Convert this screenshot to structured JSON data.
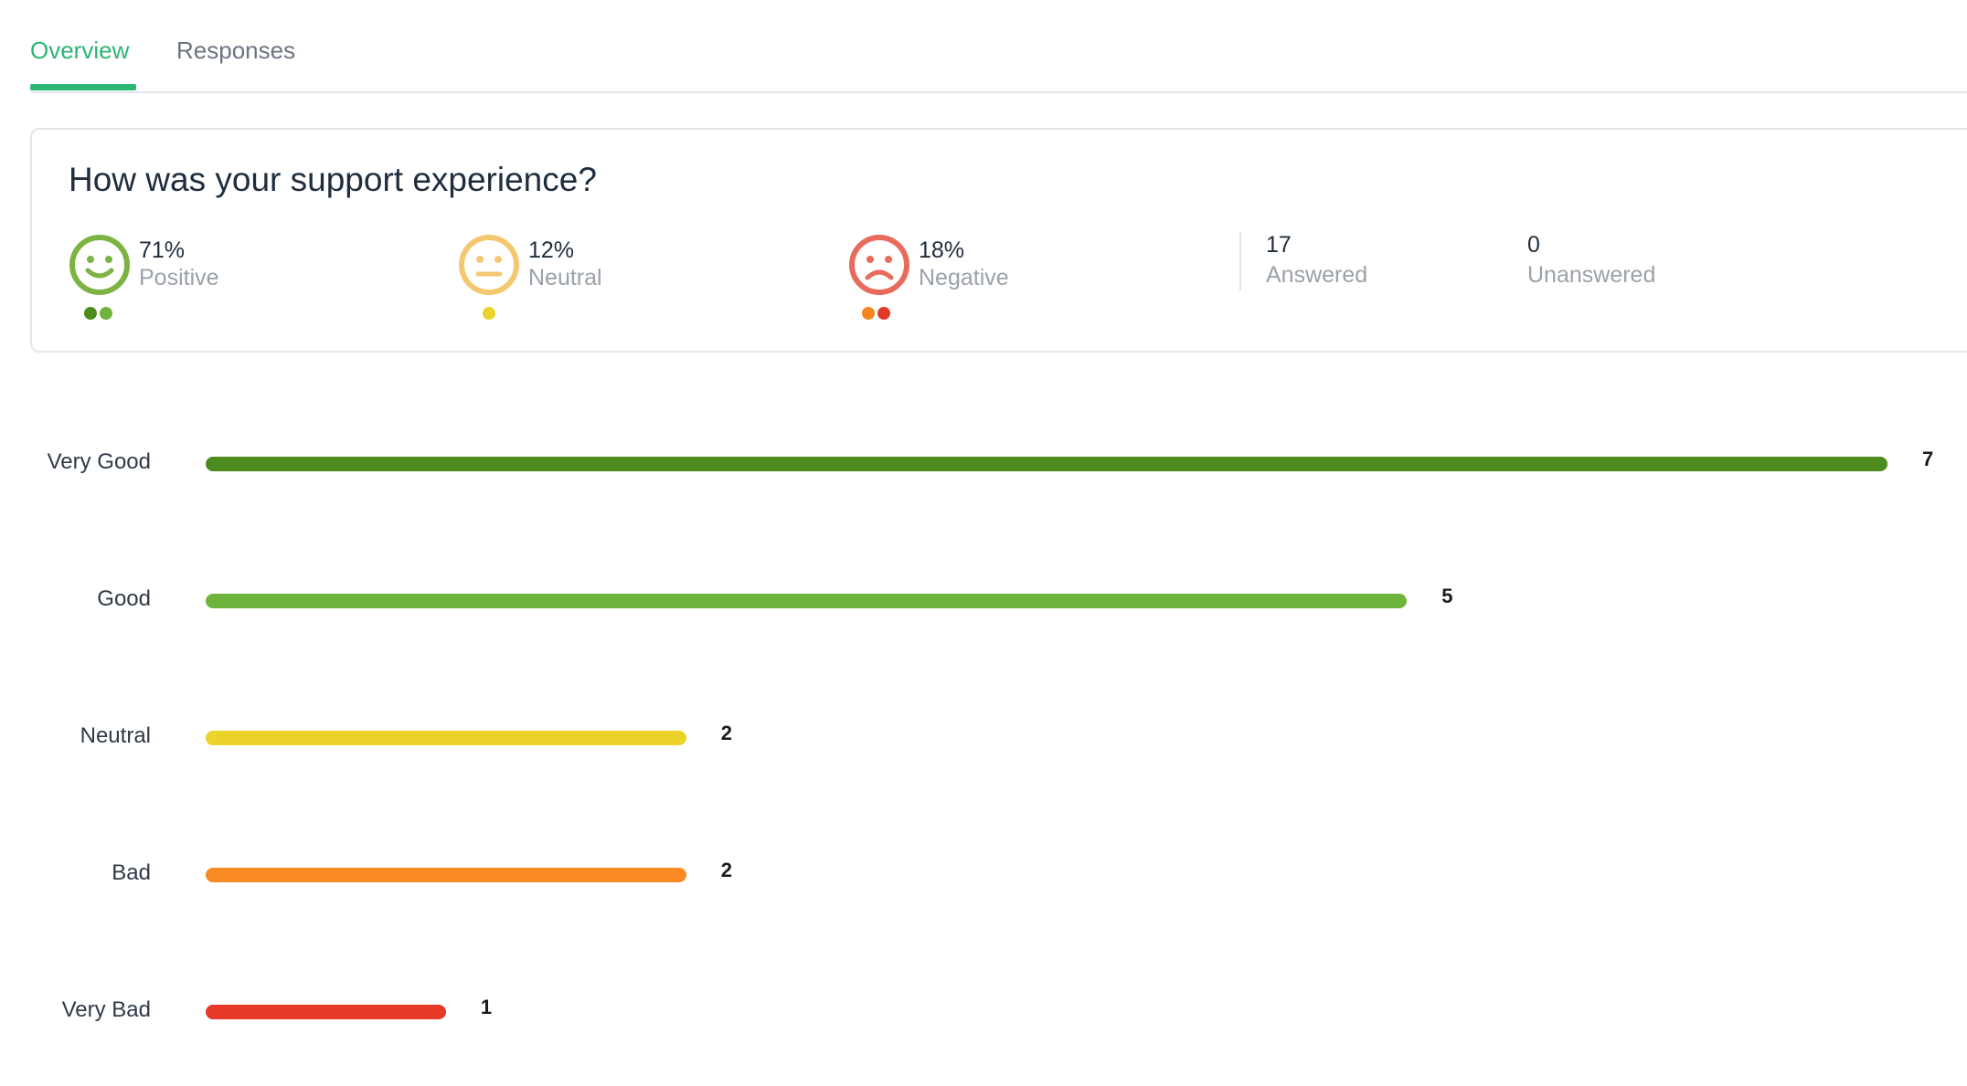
{
  "tabs": [
    {
      "label": "Overview",
      "active": true
    },
    {
      "label": "Responses",
      "active": false
    }
  ],
  "card": {
    "question": "How was your support experience?",
    "positive": {
      "percent": "71%",
      "label": "Positive",
      "icon": "smile-face-icon",
      "color": "#7cb342",
      "dots": [
        "#4e8b1e",
        "#6fb43c"
      ]
    },
    "neutral": {
      "percent": "12%",
      "label": "Neutral",
      "icon": "neutral-face-icon",
      "color": "#f4c871",
      "dots": [
        "#ecd32c"
      ]
    },
    "negative": {
      "percent": "18%",
      "label": "Negative",
      "icon": "frown-face-icon",
      "color": "#e86b5c",
      "dots": [
        "#f5861f",
        "#e33a28"
      ]
    },
    "answered": {
      "value": "17",
      "label": "Answered"
    },
    "unanswered": {
      "value": "0",
      "label": "Unanswered"
    }
  },
  "chart_data": {
    "type": "bar",
    "orientation": "horizontal",
    "categories": [
      "Very Good",
      "Good",
      "Neutral",
      "Bad",
      "Very Bad"
    ],
    "values": [
      7,
      5,
      2,
      2,
      1
    ],
    "colors": [
      "#4e8b1e",
      "#6fb43c",
      "#ecd32c",
      "#f98a24",
      "#e53a28"
    ],
    "xlim": [
      0,
      7
    ]
  }
}
